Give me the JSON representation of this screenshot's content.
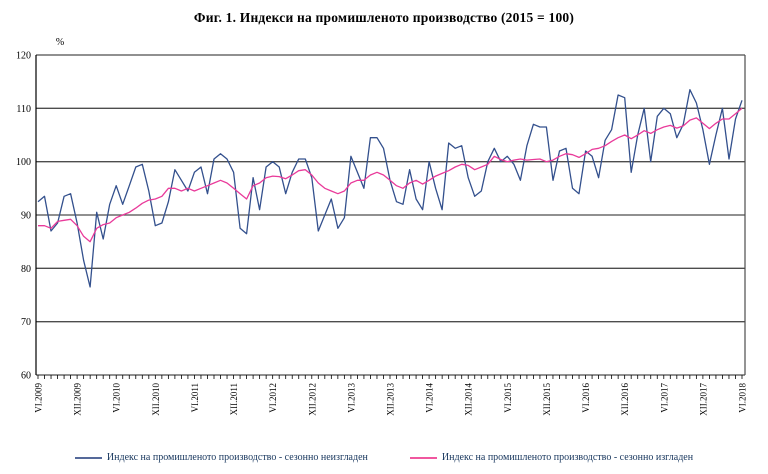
{
  "title": "Фиг. 1. Индекси на промишленото производство (2015 = 100)",
  "y_axis": {
    "unit_label": "%",
    "ticks": [
      120,
      110,
      100,
      90,
      80,
      70,
      60
    ],
    "min": 60,
    "max": 120
  },
  "x_axis": {
    "tick_labels": [
      "VI.2009",
      "XII.2009",
      "VI.2010",
      "XII.2010",
      "VI.2011",
      "XII.2011",
      "VI.2012",
      "XII.2012",
      "VI.2013",
      "XII.2013",
      "VI.2014",
      "XII.2014",
      "VI.2015",
      "XII.2015",
      "VI.2016",
      "XII.2016",
      "VI.2017",
      "XII.2017",
      "VI.2018"
    ],
    "label_every_n_months": 6
  },
  "legend": [
    {
      "label": "Индекс на промишленото производство - сезонно  неизгладен",
      "color": "#55699a"
    },
    {
      "label": "Индекс на промишленото производство - сезонно изгладен",
      "color": "#f0579f"
    }
  ],
  "colors": {
    "unadjusted_line": "#33508d",
    "adjusted_line": "#e93a9a",
    "gridline": "#4d4d4d",
    "axis": "#000000",
    "legend_text": "#17365d",
    "tick_text": "#000000"
  },
  "chart_data": {
    "type": "line",
    "title": "Фиг. 1. Индекси на промишленото производство (2015 = 100)",
    "ylabel": "%",
    "ylim": [
      60,
      120
    ],
    "grid": "horizontal",
    "legend_position": "bottom",
    "months": [
      "VI.2009",
      "VII.2009",
      "VIII.2009",
      "IX.2009",
      "X.2009",
      "XI.2009",
      "XII.2009",
      "I.2010",
      "II.2010",
      "III.2010",
      "IV.2010",
      "V.2010",
      "VI.2010",
      "VII.2010",
      "VIII.2010",
      "IX.2010",
      "X.2010",
      "XI.2010",
      "XII.2010",
      "I.2011",
      "II.2011",
      "III.2011",
      "IV.2011",
      "V.2011",
      "VI.2011",
      "VII.2011",
      "VIII.2011",
      "IX.2011",
      "X.2011",
      "XI.2011",
      "XII.2011",
      "I.2012",
      "II.2012",
      "III.2012",
      "IV.2012",
      "V.2012",
      "VI.2012",
      "VII.2012",
      "VIII.2012",
      "IX.2012",
      "X.2012",
      "XI.2012",
      "XII.2012",
      "I.2013",
      "II.2013",
      "III.2013",
      "IV.2013",
      "V.2013",
      "VI.2013",
      "VII.2013",
      "VIII.2013",
      "IX.2013",
      "X.2013",
      "XI.2013",
      "XII.2013",
      "I.2014",
      "II.2014",
      "III.2014",
      "IV.2014",
      "V.2014",
      "VI.2014",
      "VII.2014",
      "VIII.2014",
      "IX.2014",
      "X.2014",
      "XI.2014",
      "XII.2014",
      "I.2015",
      "II.2015",
      "III.2015",
      "IV.2015",
      "V.2015",
      "VI.2015",
      "VII.2015",
      "VIII.2015",
      "IX.2015",
      "X.2015",
      "XI.2015",
      "XII.2015",
      "I.2016",
      "II.2016",
      "III.2016",
      "IV.2016",
      "V.2016",
      "VI.2016",
      "VII.2016",
      "VIII.2016",
      "IX.2016",
      "X.2016",
      "XI.2016",
      "XII.2016",
      "I.2017",
      "II.2017",
      "III.2017",
      "IV.2017",
      "V.2017",
      "VI.2017",
      "VII.2017",
      "VIII.2017",
      "IX.2017",
      "X.2017",
      "XI.2017",
      "XII.2017",
      "I.2018",
      "II.2018",
      "III.2018",
      "IV.2018",
      "V.2018",
      "VI.2018"
    ],
    "series": [
      {
        "name": "Индекс на промишленото производство - сезонно  неизгладен",
        "color": "#33508d",
        "values": [
          92.5,
          93.5,
          87,
          88.5,
          93.5,
          94,
          88.5,
          81.5,
          76.5,
          90.5,
          85.5,
          92,
          95.5,
          92,
          95.5,
          99,
          99.5,
          94.5,
          88,
          88.5,
          92.5,
          98.5,
          96.5,
          94.5,
          98,
          99,
          94,
          100.5,
          101.5,
          100.5,
          98,
          87.5,
          86.5,
          97,
          91,
          99,
          100,
          99,
          94,
          98,
          100.5,
          100.5,
          97,
          87,
          90,
          93,
          87.5,
          89.5,
          101,
          98,
          95,
          104.5,
          104.5,
          102.5,
          96.5,
          92.5,
          92,
          98.5,
          93,
          91,
          100,
          95,
          91,
          103.5,
          102.5,
          103,
          97,
          93.5,
          94.5,
          100,
          102.5,
          100,
          101,
          99.5,
          96.5,
          103,
          107,
          106.5,
          106.5,
          96.5,
          102,
          102.5,
          95,
          94,
          102,
          101,
          97,
          104,
          106,
          112.5,
          112,
          98,
          105,
          110,
          100,
          108.5,
          110,
          109,
          104.5,
          107,
          113.5,
          111,
          106,
          99.5,
          105,
          110,
          100.5,
          108,
          111.5
        ]
      },
      {
        "name": "Индекс на промишленото производство - сезонно изгладен",
        "color": "#e93a9a",
        "values": [
          88,
          88,
          87.5,
          88.8,
          89,
          89.2,
          88,
          86,
          85,
          87.5,
          88.2,
          88.5,
          89.5,
          90,
          90.5,
          91.3,
          92.2,
          92.8,
          93,
          93.5,
          95,
          95,
          94.5,
          95,
          94.5,
          95,
          95.5,
          96,
          96.5,
          96,
          95,
          94,
          93,
          95.5,
          96,
          97,
          97.3,
          97.2,
          96.8,
          97.5,
          98.3,
          98.5,
          97.5,
          96,
          95,
          94.5,
          94,
          94.5,
          96,
          96.5,
          96.5,
          97.5,
          98,
          97.5,
          96.5,
          95.5,
          95,
          96,
          96.5,
          95.8,
          96.5,
          97.3,
          97.8,
          98.3,
          99,
          99.5,
          99.3,
          98.5,
          99,
          99.5,
          101,
          100.4,
          100,
          100.3,
          100.5,
          100.3,
          100.4,
          100.5,
          100,
          100.3,
          101,
          101.5,
          101.3,
          100.8,
          101.5,
          102.3,
          102.5,
          103,
          103.8,
          104.5,
          105,
          104.3,
          105,
          105.8,
          105.3,
          106,
          106.5,
          106.8,
          106.3,
          106.7,
          107.8,
          108.2,
          107.2,
          106.2,
          107.2,
          108,
          108,
          109,
          110
        ]
      }
    ]
  }
}
